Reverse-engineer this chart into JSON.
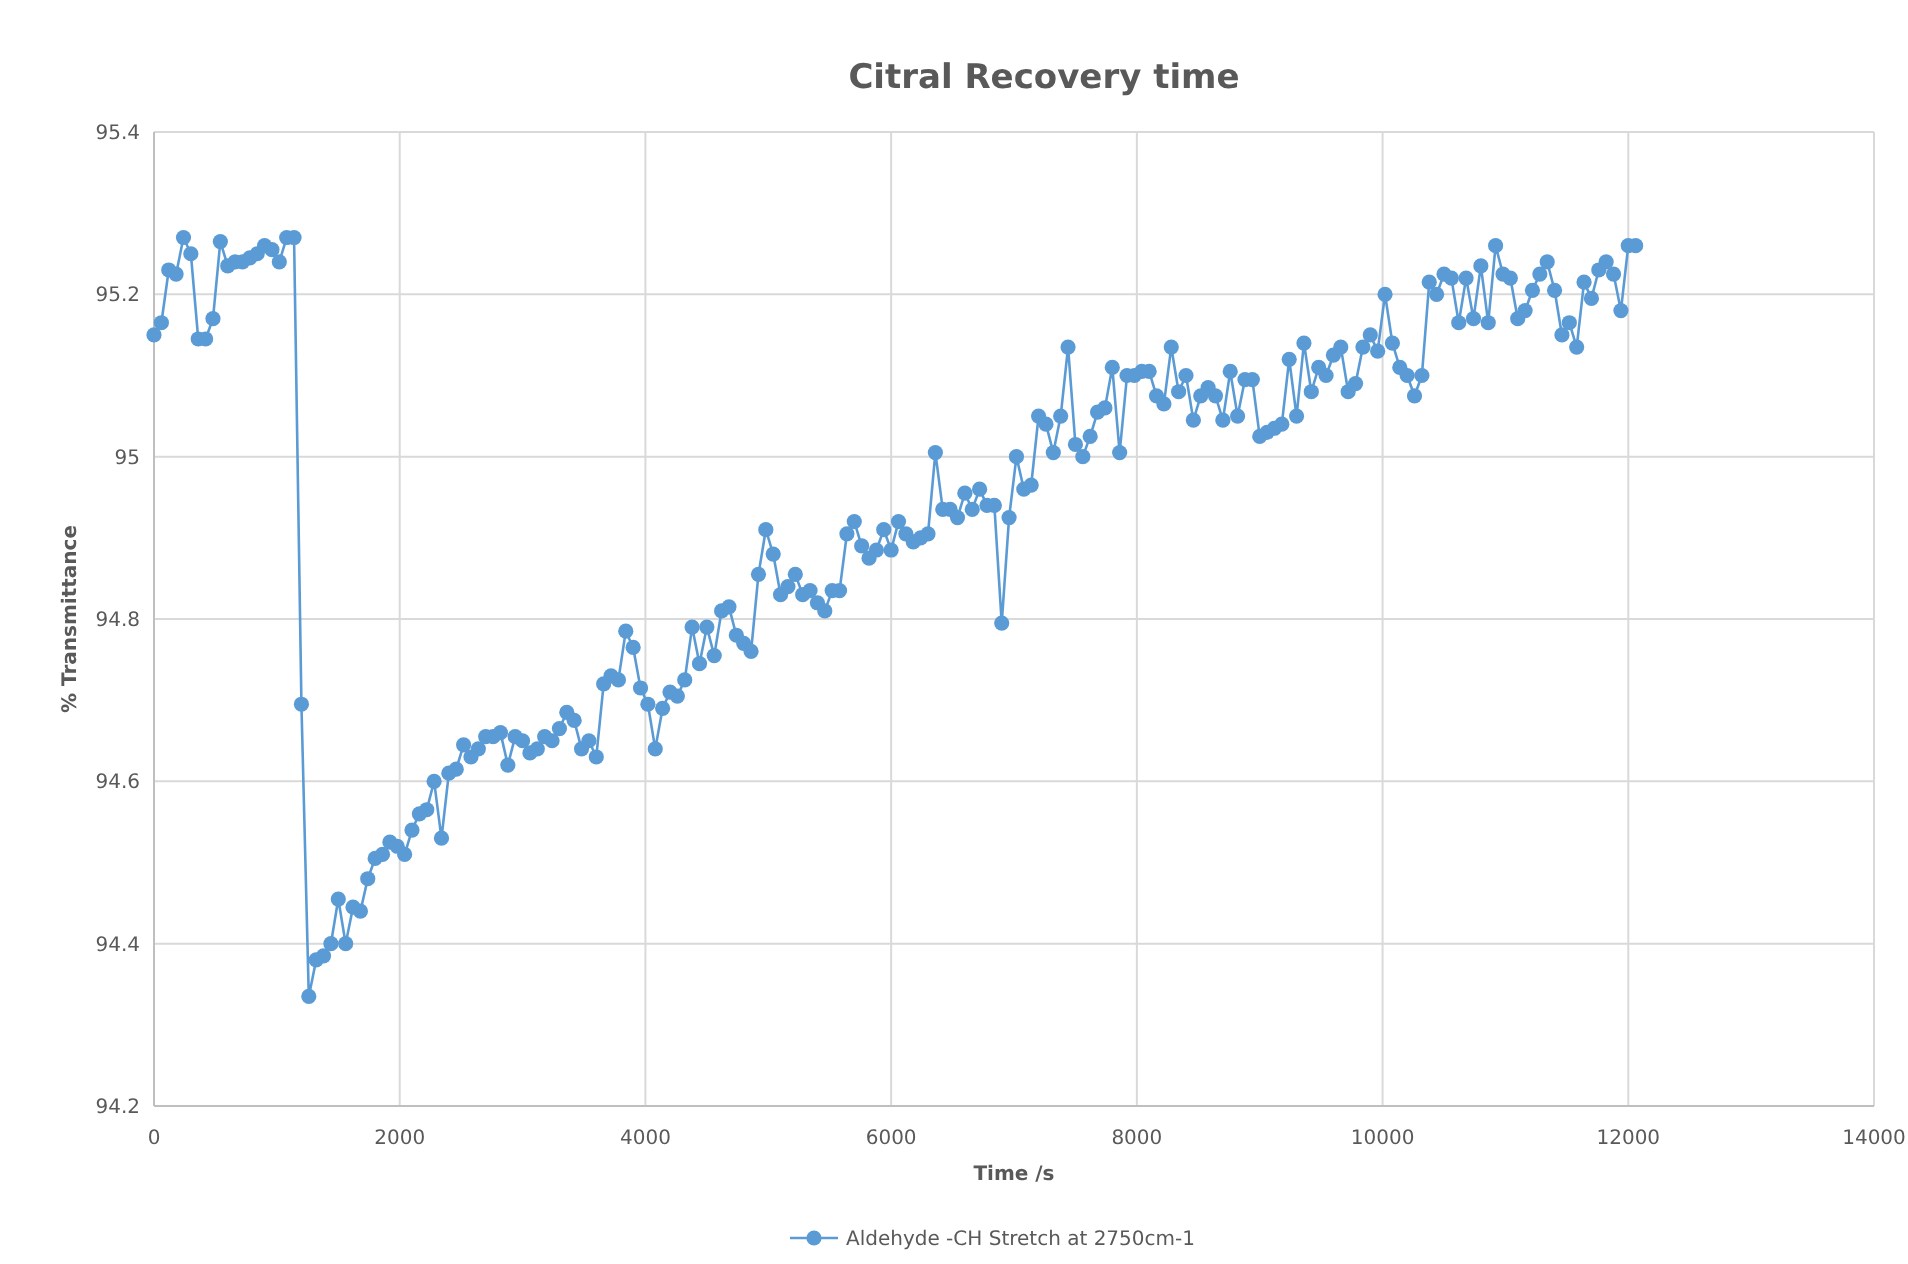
{
  "chart_data": {
    "type": "line",
    "title": "Citral Recovery time",
    "xlabel": "Time /s",
    "ylabel": "% Transmittance",
    "x": [
      0,
      60,
      120,
      180,
      240,
      300,
      360,
      420,
      480,
      540,
      600,
      660,
      720,
      780,
      840,
      900,
      960,
      1020,
      1080,
      1140,
      1200,
      1260,
      1320,
      1380,
      1440,
      1500,
      1560,
      1620,
      1680,
      1740,
      1800,
      1860,
      1920,
      1980,
      2040,
      2100,
      2160,
      2220,
      2280,
      2340,
      2400,
      2460,
      2520,
      2580,
      2640,
      2700,
      2760,
      2820,
      2880,
      2940,
      3000,
      3060,
      3120,
      3180,
      3240,
      3300,
      3360,
      3420,
      3480,
      3540,
      3600,
      3660,
      3720,
      3780,
      3840,
      3900,
      3960,
      4020,
      4080,
      4140,
      4200,
      4260,
      4320,
      4380,
      4440,
      4500,
      4560,
      4620,
      4680,
      4740,
      4800,
      4860,
      4920,
      4980,
      5040,
      5100,
      5160,
      5220,
      5280,
      5340,
      5400,
      5460,
      5520,
      5580,
      5640,
      5700,
      5760,
      5820,
      5880,
      5940,
      6000,
      6060,
      6120,
      6180,
      6240,
      6300,
      6360,
      6420,
      6480,
      6540,
      6600,
      6660,
      6720,
      6780,
      6840,
      6900,
      6960,
      7020,
      7080,
      7140,
      7200,
      7260,
      7320,
      7380,
      7440,
      7500,
      7560,
      7620,
      7680,
      7740,
      7800,
      7860,
      7920,
      7980,
      8040,
      8100,
      8160,
      8220,
      8280,
      8340,
      8400,
      8460,
      8520,
      8580,
      8640,
      8700,
      8760,
      8820,
      8880,
      8940,
      9000,
      9060,
      9120,
      9180,
      9240,
      9300,
      9360,
      9420,
      9480,
      9540,
      9600,
      9660,
      9720,
      9780,
      9840,
      9900,
      9960,
      10020,
      10080,
      10140,
      10200,
      10260,
      10320,
      10380,
      10440,
      10500,
      10560,
      10620,
      10680,
      10740,
      10800,
      10860,
      10920,
      10980,
      11040,
      11100,
      11160,
      11220,
      11280,
      11340,
      11400,
      11460,
      11520,
      11580,
      11640,
      11700,
      11760,
      11820,
      11880,
      11940,
      12000,
      12060
    ],
    "series": [
      {
        "name": "Aldehyde -CH Stretch at 2750cm-1",
        "color": "#5b9bd5",
        "values": [
          95.15,
          95.165,
          95.23,
          95.225,
          95.27,
          95.25,
          95.145,
          95.145,
          95.17,
          95.265,
          95.235,
          95.24,
          95.24,
          95.245,
          95.25,
          95.26,
          95.255,
          95.24,
          95.27,
          95.27,
          94.695,
          94.335,
          94.38,
          94.385,
          94.4,
          94.455,
          94.4,
          94.445,
          94.44,
          94.48,
          94.505,
          94.51,
          94.525,
          94.52,
          94.51,
          94.54,
          94.56,
          94.565,
          94.6,
          94.53,
          94.61,
          94.615,
          94.645,
          94.63,
          94.64,
          94.655,
          94.655,
          94.66,
          94.62,
          94.655,
          94.65,
          94.635,
          94.64,
          94.655,
          94.65,
          94.665,
          94.685,
          94.675,
          94.64,
          94.65,
          94.63,
          94.72,
          94.73,
          94.725,
          94.785,
          94.765,
          94.715,
          94.695,
          94.64,
          94.69,
          94.71,
          94.705,
          94.725,
          94.79,
          94.745,
          94.79,
          94.755,
          94.81,
          94.815,
          94.78,
          94.77,
          94.76,
          94.855,
          94.91,
          94.88,
          94.83,
          94.84,
          94.855,
          94.83,
          94.835,
          94.82,
          94.81,
          94.835,
          94.835,
          94.905,
          94.92,
          94.89,
          94.875,
          94.885,
          94.91,
          94.885,
          94.92,
          94.905,
          94.895,
          94.9,
          94.905,
          95.005,
          94.935,
          94.935,
          94.925,
          94.955,
          94.935,
          94.96,
          94.94,
          94.94,
          94.795,
          94.925,
          95.0,
          94.96,
          94.965,
          95.05,
          95.04,
          95.005,
          95.05,
          95.135,
          95.015,
          95.0,
          95.025,
          95.055,
          95.06,
          95.11,
          95.005,
          95.1,
          95.1,
          95.105,
          95.105,
          95.075,
          95.065,
          95.135,
          95.08,
          95.1,
          95.045,
          95.075,
          95.085,
          95.075,
          95.045,
          95.105,
          95.05,
          95.095,
          95.095,
          95.025,
          95.03,
          95.035,
          95.04,
          95.12,
          95.05,
          95.14,
          95.08,
          95.11,
          95.1,
          95.125,
          95.135,
          95.08,
          95.09,
          95.135,
          95.15,
          95.13,
          95.2,
          95.14,
          95.11,
          95.1,
          95.075,
          95.1,
          95.215,
          95.2,
          95.225,
          95.22,
          95.165,
          95.22,
          95.17,
          95.235,
          95.165,
          95.26,
          95.225,
          95.22,
          95.17,
          95.18,
          95.205,
          95.225,
          95.24,
          95.205,
          95.15,
          95.165,
          95.135,
          95.215,
          95.195,
          95.23,
          95.24,
          95.225,
          95.18,
          95.26,
          95.26
        ]
      }
    ],
    "xlim": [
      0,
      14000
    ],
    "xticks": [
      0,
      2000,
      4000,
      6000,
      8000,
      10000,
      12000,
      14000
    ],
    "ylim": [
      94.2,
      95.4
    ],
    "yticks": [
      {
        "value": 94.2,
        "label": "94.2"
      },
      {
        "value": 94.4,
        "label": "94.4"
      },
      {
        "value": 94.6,
        "label": "94.6"
      },
      {
        "value": 94.8,
        "label": "94.8"
      },
      {
        "value": 95,
        "label": "95"
      },
      {
        "value": 95.2,
        "label": "95.2"
      },
      {
        "value": 95.4,
        "label": "95.4"
      }
    ],
    "grid": true,
    "legend": "bottom",
    "marker": "circle",
    "line_style": "solid"
  }
}
